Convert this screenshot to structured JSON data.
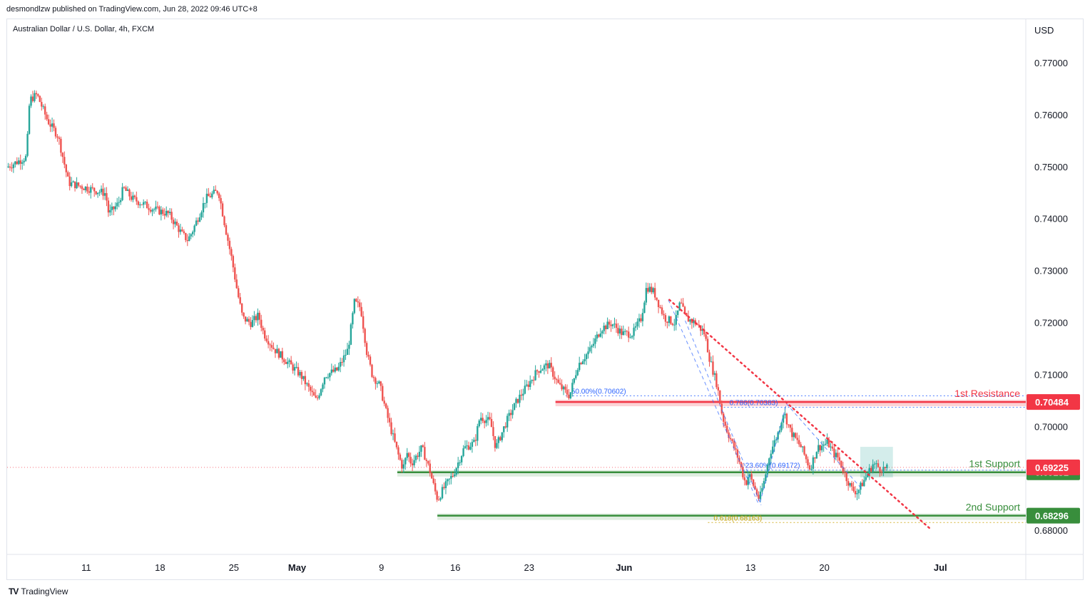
{
  "header": {
    "publisher_line": "desmondlzw published on TradingView.com, Jun 28, 2022 09:46 UTC+8",
    "symbol_line": "Australian Dollar / U.S. Dollar, 4h, FXCM",
    "currency": "USD"
  },
  "footer": {
    "brand": "TradingView",
    "logo": "TV"
  },
  "colors": {
    "up": "#26a69a",
    "down": "#ef5350",
    "resistance": "#f23645",
    "support": "#388e3c",
    "current_price": "#f23645",
    "fib_blue": "#2962ff",
    "fib_gold": "#c8a000"
  },
  "chart_data": {
    "type": "candlestick",
    "title": "Australian Dollar / U.S. Dollar, 4h, FXCM",
    "ylabel": "USD",
    "ylim": [
      0.6755,
      0.7785
    ],
    "y_ticks": [
      "0.77000",
      "0.76000",
      "0.75000",
      "0.74000",
      "0.73000",
      "0.72000",
      "0.71000",
      "0.70000",
      "0.68000"
    ],
    "x_ticks": [
      {
        "label": "11",
        "bold": false,
        "day": 0
      },
      {
        "label": "18",
        "bold": false,
        "day": 7
      },
      {
        "label": "25",
        "bold": false,
        "day": 14
      },
      {
        "label": "May",
        "bold": true,
        "day": 20
      },
      {
        "label": "9",
        "bold": false,
        "day": 28
      },
      {
        "label": "16",
        "bold": false,
        "day": 35
      },
      {
        "label": "23",
        "bold": false,
        "day": 42
      },
      {
        "label": "Jun",
        "bold": true,
        "day": 51
      },
      {
        "label": "13",
        "bold": false,
        "day": 63
      },
      {
        "label": "20",
        "bold": false,
        "day": 70
      },
      {
        "label": "Jul",
        "bold": true,
        "day": 81
      }
    ],
    "x_range_days": [
      -7.5,
      89.1
    ],
    "series_anchors": [
      {
        "day": -7.4,
        "price": 0.75
      },
      {
        "day": -5.5,
        "price": 0.752
      },
      {
        "day": -5.2,
        "price": 0.763
      },
      {
        "day": -4.5,
        "price": 0.764
      },
      {
        "day": -3.5,
        "price": 0.759
      },
      {
        "day": -2.5,
        "price": 0.756
      },
      {
        "day": -1.5,
        "price": 0.747
      },
      {
        "day": 2.0,
        "price": 0.745
      },
      {
        "day": 2.3,
        "price": 0.741
      },
      {
        "day": 3.2,
        "price": 0.743
      },
      {
        "day": 3.7,
        "price": 0.746
      },
      {
        "day": 4.5,
        "price": 0.744
      },
      {
        "day": 6.5,
        "price": 0.742
      },
      {
        "day": 8.0,
        "price": 0.741
      },
      {
        "day": 9.3,
        "price": 0.737
      },
      {
        "day": 9.8,
        "price": 0.736
      },
      {
        "day": 10.3,
        "price": 0.738
      },
      {
        "day": 11.5,
        "price": 0.744
      },
      {
        "day": 12.7,
        "price": 0.7455
      },
      {
        "day": 13.4,
        "price": 0.738
      },
      {
        "day": 14.0,
        "price": 0.732
      },
      {
        "day": 14.5,
        "price": 0.726
      },
      {
        "day": 15.0,
        "price": 0.721
      },
      {
        "day": 15.8,
        "price": 0.72
      },
      {
        "day": 16.5,
        "price": 0.7215
      },
      {
        "day": 17.0,
        "price": 0.718
      },
      {
        "day": 18.0,
        "price": 0.715
      },
      {
        "day": 19.5,
        "price": 0.712
      },
      {
        "day": 20.5,
        "price": 0.71
      },
      {
        "day": 22.0,
        "price": 0.705
      },
      {
        "day": 22.8,
        "price": 0.71
      },
      {
        "day": 24.0,
        "price": 0.711
      },
      {
        "day": 25.0,
        "price": 0.715
      },
      {
        "day": 25.6,
        "price": 0.724
      },
      {
        "day": 26.2,
        "price": 0.723
      },
      {
        "day": 26.8,
        "price": 0.714
      },
      {
        "day": 27.3,
        "price": 0.71
      },
      {
        "day": 28.0,
        "price": 0.708
      },
      {
        "day": 28.6,
        "price": 0.703
      },
      {
        "day": 29.0,
        "price": 0.7
      },
      {
        "day": 29.7,
        "price": 0.695
      },
      {
        "day": 30.2,
        "price": 0.692
      },
      {
        "day": 30.6,
        "price": 0.695
      },
      {
        "day": 31.0,
        "price": 0.693
      },
      {
        "day": 32.0,
        "price": 0.696
      },
      {
        "day": 32.7,
        "price": 0.692
      },
      {
        "day": 33.2,
        "price": 0.688
      },
      {
        "day": 33.5,
        "price": 0.686
      },
      {
        "day": 34.0,
        "price": 0.688
      },
      {
        "day": 35.0,
        "price": 0.691
      },
      {
        "day": 36.0,
        "price": 0.696
      },
      {
        "day": 37.0,
        "price": 0.697
      },
      {
        "day": 37.5,
        "price": 0.702
      },
      {
        "day": 38.5,
        "price": 0.701
      },
      {
        "day": 39.0,
        "price": 0.696
      },
      {
        "day": 40.0,
        "price": 0.701
      },
      {
        "day": 41.0,
        "price": 0.705
      },
      {
        "day": 42.0,
        "price": 0.708
      },
      {
        "day": 43.0,
        "price": 0.711
      },
      {
        "day": 44.0,
        "price": 0.712
      },
      {
        "day": 45.0,
        "price": 0.708
      },
      {
        "day": 46.0,
        "price": 0.706
      },
      {
        "day": 46.8,
        "price": 0.712
      },
      {
        "day": 48.0,
        "price": 0.715
      },
      {
        "day": 49.0,
        "price": 0.719
      },
      {
        "day": 50.0,
        "price": 0.72
      },
      {
        "day": 51.0,
        "price": 0.718
      },
      {
        "day": 52.0,
        "price": 0.718
      },
      {
        "day": 52.8,
        "price": 0.721
      },
      {
        "day": 53.3,
        "price": 0.727
      },
      {
        "day": 54.0,
        "price": 0.726
      },
      {
        "day": 55.0,
        "price": 0.721
      },
      {
        "day": 56.0,
        "price": 0.72
      },
      {
        "day": 56.5,
        "price": 0.724
      },
      {
        "day": 57.0,
        "price": 0.721
      },
      {
        "day": 58.0,
        "price": 0.72
      },
      {
        "day": 58.8,
        "price": 0.718
      },
      {
        "day": 59.3,
        "price": 0.713
      },
      {
        "day": 60.0,
        "price": 0.708
      },
      {
        "day": 60.5,
        "price": 0.702
      },
      {
        "day": 61.0,
        "price": 0.699
      },
      {
        "day": 62.0,
        "price": 0.694
      },
      {
        "day": 62.7,
        "price": 0.689
      },
      {
        "day": 63.0,
        "price": 0.691
      },
      {
        "day": 63.6,
        "price": 0.688
      },
      {
        "day": 64.0,
        "price": 0.686
      },
      {
        "day": 64.5,
        "price": 0.69
      },
      {
        "day": 65.0,
        "price": 0.695
      },
      {
        "day": 65.8,
        "price": 0.699
      },
      {
        "day": 66.3,
        "price": 0.703
      },
      {
        "day": 67.0,
        "price": 0.699
      },
      {
        "day": 68.0,
        "price": 0.696
      },
      {
        "day": 68.8,
        "price": 0.692
      },
      {
        "day": 69.5,
        "price": 0.696
      },
      {
        "day": 70.5,
        "price": 0.697
      },
      {
        "day": 71.0,
        "price": 0.695
      },
      {
        "day": 71.5,
        "price": 0.694
      },
      {
        "day": 72.3,
        "price": 0.69
      },
      {
        "day": 72.8,
        "price": 0.688
      },
      {
        "day": 73.3,
        "price": 0.6875
      },
      {
        "day": 74.0,
        "price": 0.69
      },
      {
        "day": 74.8,
        "price": 0.693
      },
      {
        "day": 75.5,
        "price": 0.692
      },
      {
        "day": 76.0,
        "price": 0.692
      }
    ],
    "levels": [
      {
        "label": "1st Resistance",
        "price": 0.70484,
        "tag": "0.70484",
        "kind": "resistance",
        "from_day": 44.5
      },
      {
        "label": "1st Support",
        "price": 0.69131,
        "tag": "0.69131",
        "kind": "support",
        "from_day": 29.5
      },
      {
        "label": "2nd Support",
        "price": 0.68296,
        "tag": "0.68296",
        "kind": "support",
        "from_day": 33.3
      }
    ],
    "current_price": {
      "price": 0.69225,
      "tag": "0.69225"
    },
    "fib_annotations": [
      {
        "text": "50.00%(0.70602)",
        "price": 0.70602,
        "day": 46.0,
        "color": "blue"
      },
      {
        "text": "0.786(0.70383)",
        "price": 0.70383,
        "day": 61.0,
        "color": "blue"
      },
      {
        "text": "23.60%(0.69172)",
        "price": 0.69172,
        "day": 62.5,
        "color": "blue"
      },
      {
        "text": "0.618(0.68163)",
        "price": 0.68163,
        "day": 59.5,
        "color": "gold"
      }
    ],
    "trendline": {
      "from": {
        "day": 55.3,
        "price": 0.7245
      },
      "to": {
        "day": 80.0,
        "price": 0.6805
      }
    },
    "consolidation_box": {
      "day_from": 73.4,
      "day_to": 76.5,
      "price_from": 0.6903,
      "price_to": 0.6962
    }
  }
}
